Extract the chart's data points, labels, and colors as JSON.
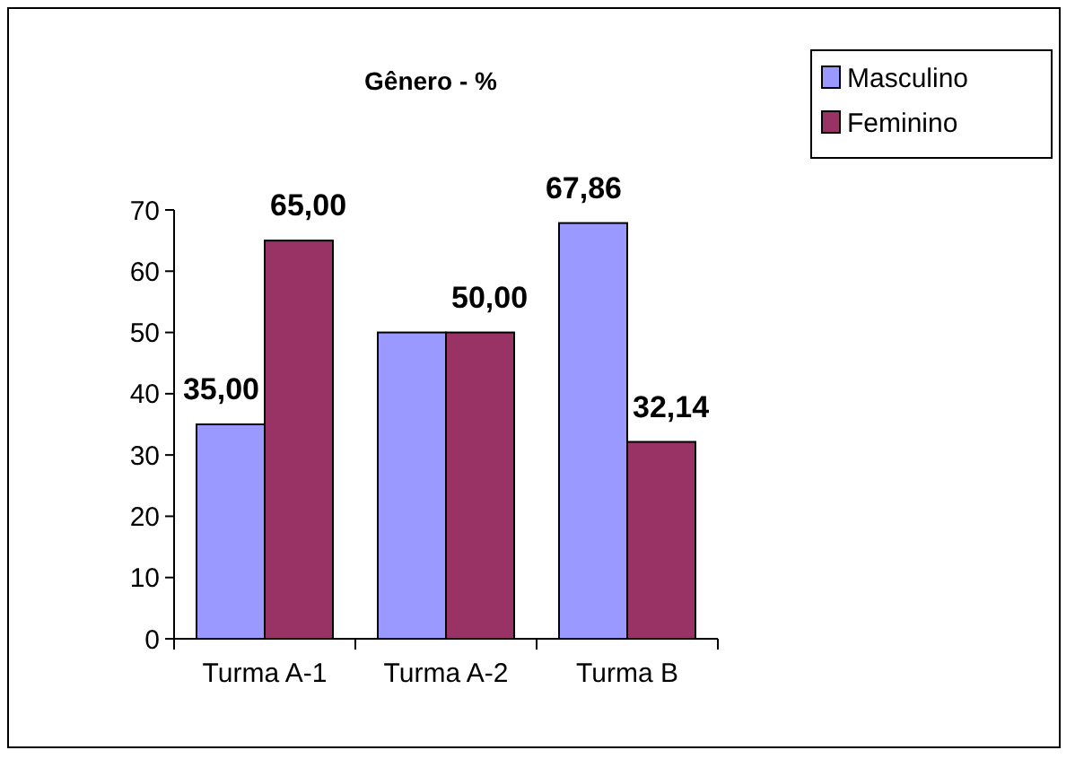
{
  "chart_data": {
    "type": "bar",
    "title": "Gênero - %",
    "categories": [
      "Turma A-1",
      "Turma A-2",
      "Turma B"
    ],
    "series": [
      {
        "name": "Masculino",
        "color": "#9999ff",
        "values": [
          35,
          50,
          67.86
        ],
        "value_labels": [
          "35,00",
          null,
          "67,86"
        ]
      },
      {
        "name": "Feminino",
        "color": "#993366",
        "values": [
          65,
          50,
          32.14
        ],
        "value_labels": [
          "65,00",
          "50,00",
          "32,14"
        ]
      }
    ],
    "ylim": [
      0,
      70
    ],
    "yticks": [
      0,
      10,
      20,
      30,
      40,
      50,
      60,
      70
    ],
    "grid": false,
    "legend": "top right"
  }
}
